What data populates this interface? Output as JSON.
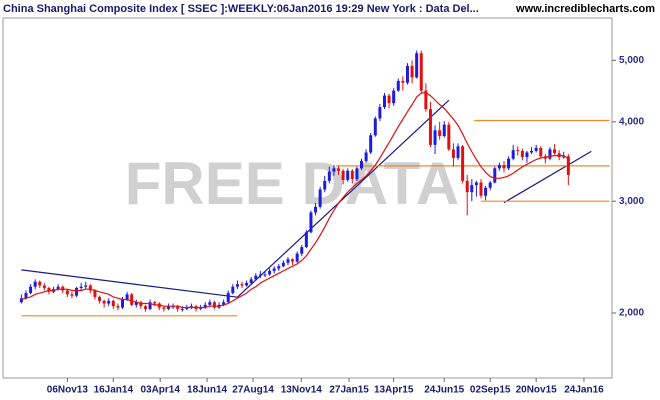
{
  "chart_data": {
    "type": "candlestick",
    "title": "China Shanghai Composite Index [ SSEC ]:WEEKLY:06Jan2016 19:29 New York : Data Del...",
    "site": "www.incrediblecharts.com",
    "watermark": "FREE DATA",
    "log_scale": true,
    "up_color": "#1c1cdc",
    "down_color": "#e01010",
    "ylim": [
      1580,
      5830
    ],
    "yticks": [
      {
        "value": 2000,
        "label": "2,000"
      },
      {
        "value": 3000,
        "label": "3,000"
      },
      {
        "value": 4000,
        "label": "4,000"
      },
      {
        "value": 5000,
        "label": "5,000"
      }
    ],
    "xlim": [
      -4,
      128.5
    ],
    "xticks": [
      {
        "value": 10,
        "label": "06Nov13"
      },
      {
        "value": 20,
        "label": "16Jan14"
      },
      {
        "value": 30.2,
        "label": "03Apr14"
      },
      {
        "value": 40.4,
        "label": "18Jun14"
      },
      {
        "value": 50.4,
        "label": "27Aug14"
      },
      {
        "value": 60.9,
        "label": "13Nov14"
      },
      {
        "value": 71.3,
        "label": "27Jan15"
      },
      {
        "value": 81,
        "label": "13Apr15"
      },
      {
        "value": 92,
        "label": "24Jun15"
      },
      {
        "value": 102,
        "label": "02Sep15"
      },
      {
        "value": 112,
        "label": "20Nov15"
      },
      {
        "value": 122.4,
        "label": "24Jan16"
      }
    ],
    "ohlc": [
      [
        2080,
        2140,
        2070,
        2110
      ],
      [
        2110,
        2170,
        2100,
        2150
      ],
      [
        2150,
        2220,
        2140,
        2200
      ],
      [
        2200,
        2260,
        2180,
        2240
      ],
      [
        2240,
        2250,
        2190,
        2210
      ],
      [
        2210,
        2230,
        2170,
        2190
      ],
      [
        2190,
        2200,
        2140,
        2160
      ],
      [
        2160,
        2200,
        2150,
        2180
      ],
      [
        2180,
        2220,
        2170,
        2200
      ],
      [
        2200,
        2210,
        2150,
        2170
      ],
      [
        2170,
        2180,
        2120,
        2140
      ],
      [
        2140,
        2160,
        2110,
        2130
      ],
      [
        2130,
        2200,
        2120,
        2190
      ],
      [
        2190,
        2230,
        2170,
        2200
      ],
      [
        2200,
        2240,
        2180,
        2210
      ],
      [
        2210,
        2220,
        2150,
        2170
      ],
      [
        2170,
        2180,
        2100,
        2120
      ],
      [
        2120,
        2130,
        2070,
        2090
      ],
      [
        2090,
        2100,
        2040,
        2070
      ],
      [
        2070,
        2110,
        2050,
        2090
      ],
      [
        2090,
        2100,
        2030,
        2050
      ],
      [
        2050,
        2070,
        2020,
        2040
      ],
      [
        2040,
        2120,
        2030,
        2100
      ],
      [
        2100,
        2160,
        2090,
        2140
      ],
      [
        2140,
        2150,
        2050,
        2060
      ],
      [
        2060,
        2100,
        2040,
        2080
      ],
      [
        2080,
        2090,
        2030,
        2050
      ],
      [
        2050,
        2060,
        2010,
        2030
      ],
      [
        2030,
        2100,
        2020,
        2080
      ],
      [
        2080,
        2090,
        2050,
        2070
      ],
      [
        2070,
        2080,
        2020,
        2040
      ],
      [
        2040,
        2050,
        2010,
        2030
      ],
      [
        2030,
        2070,
        2020,
        2050
      ],
      [
        2050,
        2070,
        2030,
        2050
      ],
      [
        2050,
        2060,
        2010,
        2030
      ],
      [
        2030,
        2050,
        2010,
        2030
      ],
      [
        2030,
        2060,
        2020,
        2040
      ],
      [
        2040,
        2070,
        2030,
        2050
      ],
      [
        2050,
        2060,
        2010,
        2030
      ],
      [
        2030,
        2060,
        2020,
        2040
      ],
      [
        2040,
        2080,
        2030,
        2060
      ],
      [
        2060,
        2100,
        2050,
        2080
      ],
      [
        2080,
        2090,
        2030,
        2040
      ],
      [
        2040,
        2080,
        2030,
        2060
      ],
      [
        2060,
        2100,
        2050,
        2080
      ],
      [
        2080,
        2170,
        2070,
        2150
      ],
      [
        2150,
        2220,
        2140,
        2200
      ],
      [
        2200,
        2250,
        2180,
        2220
      ],
      [
        2220,
        2240,
        2190,
        2210
      ],
      [
        2210,
        2250,
        2200,
        2230
      ],
      [
        2230,
        2280,
        2220,
        2260
      ],
      [
        2260,
        2310,
        2250,
        2290
      ],
      [
        2290,
        2330,
        2270,
        2300
      ],
      [
        2300,
        2320,
        2280,
        2300
      ],
      [
        2300,
        2350,
        2290,
        2330
      ],
      [
        2330,
        2370,
        2310,
        2350
      ],
      [
        2350,
        2390,
        2330,
        2370
      ],
      [
        2370,
        2420,
        2360,
        2400
      ],
      [
        2400,
        2450,
        2380,
        2430
      ],
      [
        2430,
        2440,
        2380,
        2410
      ],
      [
        2410,
        2500,
        2400,
        2480
      ],
      [
        2480,
        2560,
        2460,
        2540
      ],
      [
        2540,
        2700,
        2530,
        2680
      ],
      [
        2680,
        2900,
        2670,
        2880
      ],
      [
        2880,
        2980,
        2850,
        2940
      ],
      [
        2940,
        3160,
        2920,
        3130
      ],
      [
        3130,
        3290,
        3100,
        3230
      ],
      [
        3230,
        3400,
        3200,
        3340
      ],
      [
        3340,
        3420,
        3290,
        3380
      ],
      [
        3380,
        3410,
        3300,
        3350
      ],
      [
        3350,
        3370,
        3190,
        3240
      ],
      [
        3240,
        3380,
        3220,
        3350
      ],
      [
        3350,
        3370,
        3200,
        3250
      ],
      [
        3250,
        3400,
        3230,
        3380
      ],
      [
        3380,
        3500,
        3360,
        3470
      ],
      [
        3470,
        3620,
        3450,
        3580
      ],
      [
        3580,
        3840,
        3560,
        3810
      ],
      [
        3810,
        4080,
        3790,
        4050
      ],
      [
        4050,
        4270,
        4010,
        4220
      ],
      [
        4220,
        4440,
        4190,
        4400
      ],
      [
        4400,
        4430,
        4200,
        4280
      ],
      [
        4280,
        4520,
        4240,
        4480
      ],
      [
        4480,
        4680,
        4460,
        4640
      ],
      [
        4640,
        4720,
        4480,
        4610
      ],
      [
        4610,
        4950,
        4580,
        4900
      ],
      [
        4900,
        5000,
        4600,
        4700
      ],
      [
        4700,
        5180,
        4680,
        5130
      ],
      [
        5130,
        5180,
        4450,
        4480
      ],
      [
        4480,
        4600,
        4150,
        4190
      ],
      [
        4190,
        4300,
        3650,
        3680
      ],
      [
        3680,
        3950,
        3560,
        3880
      ],
      [
        3880,
        4000,
        3750,
        3800
      ],
      [
        3800,
        4010,
        3780,
        3960
      ],
      [
        3960,
        4000,
        3600,
        3620
      ],
      [
        3620,
        3700,
        3400,
        3510
      ],
      [
        3510,
        3700,
        3480,
        3660
      ],
      [
        3660,
        3680,
        3200,
        3230
      ],
      [
        3230,
        3300,
        2850,
        3100
      ],
      [
        3100,
        3250,
        3000,
        3180
      ],
      [
        3180,
        3230,
        3050,
        3210
      ],
      [
        3210,
        3250,
        3030,
        3060
      ],
      [
        3060,
        3170,
        3010,
        3150
      ],
      [
        3150,
        3230,
        3120,
        3210
      ],
      [
        3210,
        3400,
        3200,
        3380
      ],
      [
        3380,
        3450,
        3350,
        3420
      ],
      [
        3420,
        3470,
        3330,
        3380
      ],
      [
        3380,
        3530,
        3360,
        3500
      ],
      [
        3500,
        3680,
        3480,
        3610
      ],
      [
        3610,
        3660,
        3540,
        3600
      ],
      [
        3600,
        3630,
        3480,
        3520
      ],
      [
        3520,
        3600,
        3450,
        3580
      ],
      [
        3580,
        3650,
        3560,
        3600
      ],
      [
        3600,
        3680,
        3580,
        3640
      ],
      [
        3640,
        3660,
        3510,
        3530
      ],
      [
        3530,
        3560,
        3440,
        3500
      ],
      [
        3500,
        3650,
        3480,
        3620
      ],
      [
        3620,
        3690,
        3550,
        3570
      ],
      [
        3570,
        3610,
        3480,
        3520
      ],
      [
        3520,
        3590,
        3500,
        3530
      ],
      [
        3530,
        3560,
        3180,
        3300
      ]
    ],
    "ma": {
      "color": "#e01010",
      "values": [
        2100,
        2110,
        2120,
        2140,
        2150,
        2160,
        2170,
        2170,
        2180,
        2180,
        2180,
        2170,
        2170,
        2170,
        2180,
        2180,
        2170,
        2160,
        2150,
        2140,
        2120,
        2110,
        2100,
        2100,
        2090,
        2080,
        2070,
        2070,
        2070,
        2060,
        2060,
        2050,
        2050,
        2050,
        2050,
        2040,
        2040,
        2040,
        2040,
        2040,
        2040,
        2050,
        2050,
        2050,
        2060,
        2070,
        2090,
        2110,
        2130,
        2150,
        2180,
        2200,
        2230,
        2250,
        2270,
        2290,
        2310,
        2330,
        2350,
        2370,
        2390,
        2420,
        2460,
        2520,
        2580,
        2650,
        2730,
        2820,
        2900,
        2980,
        3040,
        3100,
        3150,
        3200,
        3240,
        3290,
        3350,
        3420,
        3510,
        3610,
        3710,
        3820,
        3930,
        4040,
        4150,
        4260,
        4380,
        4440,
        4450,
        4400,
        4330,
        4260,
        4200,
        4120,
        4040,
        3950,
        3830,
        3700,
        3590,
        3490,
        3400,
        3330,
        3280,
        3260,
        3260,
        3270,
        3290,
        3320,
        3360,
        3400,
        3430,
        3460,
        3490,
        3510,
        3520,
        3530,
        3540,
        3540,
        3540,
        3500
      ]
    },
    "lines": [
      {
        "color": "#1a1a8c",
        "x": [
          0,
          47
        ],
        "y": [
          2338,
          2118
        ]
      },
      {
        "color": "#1a1a8c",
        "x": [
          47,
          93
        ],
        "y": [
          2118,
          4326
        ]
      },
      {
        "color": "#1a1a8c",
        "x": [
          105,
          124
        ],
        "y": [
          2985,
          3594
        ]
      },
      {
        "color": "#f08a24",
        "x": [
          0,
          47
        ],
        "y": [
          1980,
          1980
        ]
      },
      {
        "color": "#f08a24",
        "x": [
          68.5,
          128
        ],
        "y": [
          3410,
          3410
        ]
      },
      {
        "color": "#f08a24",
        "x": [
          98.5,
          128
        ],
        "y": [
          4020,
          4020
        ]
      },
      {
        "color": "#f08a24",
        "x": [
          100,
          128
        ],
        "y": [
          3000,
          3000
        ]
      }
    ]
  }
}
